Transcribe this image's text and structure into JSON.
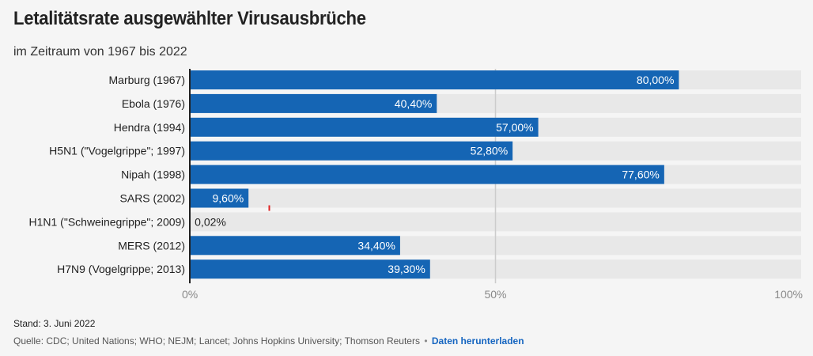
{
  "title": "Letalitätsrate ausgewählter Virusausbrüche",
  "subtitle": "im Zeitraum von 1967 bis 2022",
  "footer": {
    "stand": "Stand: 3. Juni 2022",
    "source": "Quelle: CDC; United Nations; WHO; NEJM; Lancet; Johns Hopkins University; Thomson Reuters",
    "separator": "•",
    "download_label": "Daten herunterladen"
  },
  "colors": {
    "bar": "#1565b4",
    "track": "#e8e8e8",
    "marker": "#e02020",
    "grid": "#cccccc"
  },
  "chart_data": {
    "type": "bar",
    "orientation": "horizontal",
    "categories": [
      "Marburg (1967)",
      "Ebola (1976)",
      "Hendra (1994)",
      "H5N1 (\"Vogelgrippe\"; 1997)",
      "Nipah (1998)",
      "SARS (2002)",
      "H1N1 (\"Schweinegrippe\"; 2009)",
      "MERS (2012)",
      "H7N9 (Vogelgrippe; 2013)"
    ],
    "values": [
      80.0,
      40.4,
      57.0,
      52.8,
      77.6,
      9.6,
      0.02,
      34.4,
      39.3
    ],
    "value_labels": [
      "80,00%",
      "40,40%",
      "57,00%",
      "52,80%",
      "77,60%",
      "9,60%",
      "0,02%",
      "34,40%",
      "39,30%"
    ],
    "xlim": [
      0,
      100
    ],
    "x_ticks": [
      0,
      50,
      100
    ],
    "x_tick_labels": [
      "0%",
      "50%",
      "100%"
    ],
    "grid": true,
    "marker_value": 13.0,
    "marker_category_index": 5
  }
}
